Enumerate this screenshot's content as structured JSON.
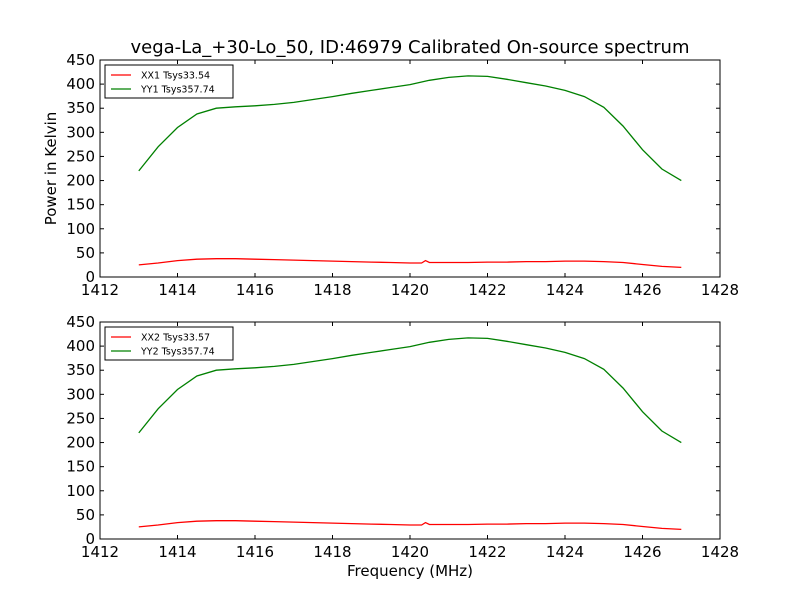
{
  "title": "vega-La_+30-Lo_50, ID:46979 Calibrated On-source spectrum",
  "chart_data": [
    {
      "type": "line",
      "title": "vega-La_+30-Lo_50, ID:46979 Calibrated On-source spectrum",
      "xlabel": "",
      "ylabel": "Power in Kelvin",
      "xlim": [
        1412,
        1428
      ],
      "ylim": [
        0,
        450
      ],
      "xticks": [
        1412,
        1414,
        1416,
        1418,
        1420,
        1422,
        1424,
        1426,
        1428
      ],
      "yticks": [
        0,
        50,
        100,
        150,
        200,
        250,
        300,
        350,
        400,
        450
      ],
      "grid": false,
      "legend_position": "top-left",
      "series": [
        {
          "name": "XX1 Tsys33.54",
          "color": "#ff0000",
          "x": [
            1413.0,
            1413.5,
            1414.0,
            1414.5,
            1415.0,
            1415.5,
            1416.0,
            1416.5,
            1417.0,
            1417.5,
            1418.0,
            1418.5,
            1419.0,
            1419.5,
            1420.0,
            1420.3,
            1420.4,
            1420.5,
            1421.0,
            1421.5,
            1422.0,
            1422.5,
            1423.0,
            1423.5,
            1424.0,
            1424.5,
            1425.0,
            1425.5,
            1426.0,
            1426.5,
            1427.0
          ],
          "y": [
            25,
            29,
            34,
            37,
            38,
            38,
            37,
            36,
            35,
            34,
            33,
            32,
            31,
            30,
            29,
            29,
            34,
            30,
            30,
            30,
            31,
            31,
            32,
            32,
            33,
            33,
            32,
            30,
            26,
            22,
            20
          ]
        },
        {
          "name": "YY1 Tsys357.74",
          "color": "#008000",
          "x": [
            1413.0,
            1413.5,
            1414.0,
            1414.5,
            1415.0,
            1415.5,
            1416.0,
            1416.5,
            1417.0,
            1417.5,
            1418.0,
            1418.5,
            1419.0,
            1419.5,
            1420.0,
            1420.5,
            1421.0,
            1421.5,
            1422.0,
            1422.5,
            1423.0,
            1423.5,
            1424.0,
            1424.5,
            1425.0,
            1425.5,
            1426.0,
            1426.5,
            1427.0
          ],
          "y": [
            220,
            270,
            310,
            338,
            350,
            353,
            355,
            358,
            362,
            368,
            374,
            381,
            387,
            393,
            399,
            408,
            414,
            417,
            416,
            410,
            403,
            396,
            387,
            374,
            352,
            313,
            264,
            224,
            200
          ]
        }
      ]
    },
    {
      "type": "line",
      "title": "",
      "xlabel": "Frequency (MHz)",
      "ylabel": "",
      "xlim": [
        1412,
        1428
      ],
      "ylim": [
        0,
        450
      ],
      "xticks": [
        1412,
        1414,
        1416,
        1418,
        1420,
        1422,
        1424,
        1426,
        1428
      ],
      "yticks": [
        0,
        50,
        100,
        150,
        200,
        250,
        300,
        350,
        400,
        450
      ],
      "grid": false,
      "legend_position": "top-left",
      "series": [
        {
          "name": "XX2 Tsys33.57",
          "color": "#ff0000",
          "x": [
            1413.0,
            1413.5,
            1414.0,
            1414.5,
            1415.0,
            1415.5,
            1416.0,
            1416.5,
            1417.0,
            1417.5,
            1418.0,
            1418.5,
            1419.0,
            1419.5,
            1420.0,
            1420.3,
            1420.4,
            1420.5,
            1421.0,
            1421.5,
            1422.0,
            1422.5,
            1423.0,
            1423.5,
            1424.0,
            1424.5,
            1425.0,
            1425.5,
            1426.0,
            1426.5,
            1427.0
          ],
          "y": [
            25,
            29,
            34,
            37,
            38,
            38,
            37,
            36,
            35,
            34,
            33,
            32,
            31,
            30,
            29,
            29,
            34,
            30,
            30,
            30,
            31,
            31,
            32,
            32,
            33,
            33,
            32,
            30,
            26,
            22,
            20
          ]
        },
        {
          "name": "YY2 Tsys357.74",
          "color": "#008000",
          "x": [
            1413.0,
            1413.5,
            1414.0,
            1414.5,
            1415.0,
            1415.5,
            1416.0,
            1416.5,
            1417.0,
            1417.5,
            1418.0,
            1418.5,
            1419.0,
            1419.5,
            1420.0,
            1420.5,
            1421.0,
            1421.5,
            1422.0,
            1422.5,
            1423.0,
            1423.5,
            1424.0,
            1424.5,
            1425.0,
            1425.5,
            1426.0,
            1426.5,
            1427.0
          ],
          "y": [
            220,
            270,
            310,
            338,
            350,
            353,
            355,
            358,
            362,
            368,
            374,
            381,
            387,
            393,
            399,
            408,
            414,
            417,
            416,
            410,
            403,
            396,
            387,
            374,
            352,
            313,
            264,
            224,
            200
          ]
        }
      ]
    }
  ]
}
